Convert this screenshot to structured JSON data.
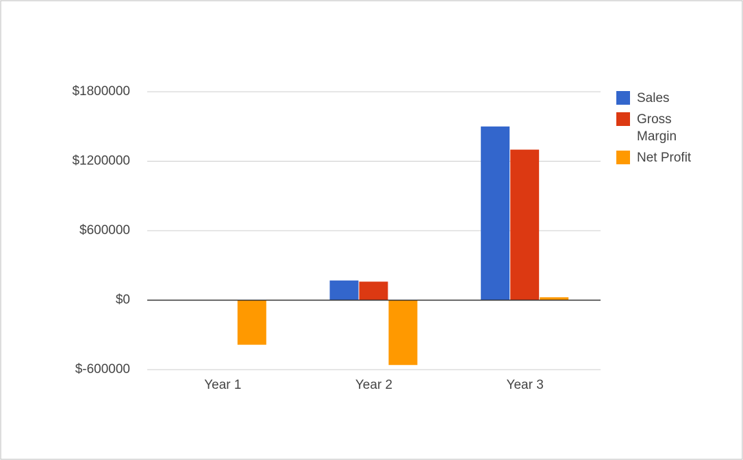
{
  "chart_data": {
    "type": "bar",
    "categories": [
      "Year 1",
      "Year 2",
      "Year 3"
    ],
    "series": [
      {
        "name": "Sales",
        "color": "#3366cc",
        "values": [
          0,
          170000,
          1500000
        ]
      },
      {
        "name": "Gross Margin",
        "color": "#dc3912",
        "values": [
          0,
          160000,
          1300000
        ]
      },
      {
        "name": "Net Profit",
        "color": "#ff9900",
        "values": [
          -385000,
          -560000,
          25000
        ]
      }
    ],
    "ylim": [
      -600000,
      1800000
    ],
    "yticks": [
      {
        "value": -600000,
        "label": "$-600000"
      },
      {
        "value": 0,
        "label": "$0"
      },
      {
        "value": 600000,
        "label": "$600000"
      },
      {
        "value": 1200000,
        "label": "$1200000"
      },
      {
        "value": 1800000,
        "label": "$1800000"
      }
    ],
    "grid": true,
    "legend": "right"
  }
}
